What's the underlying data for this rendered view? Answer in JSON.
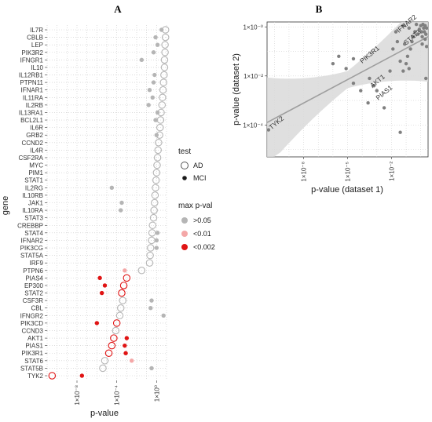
{
  "panels": {
    "A": {
      "letter": "A"
    },
    "B": {
      "letter": "B"
    }
  },
  "colors": {
    "grey": "#b5b5b5",
    "light_red": "#f4a7a7",
    "red": "#e01414",
    "band": "#d9d9d9",
    "line": "#9e9e9e",
    "scatter": "#808080"
  },
  "chart_data": [
    {
      "type": "scatter",
      "panel": "A",
      "xlabel": "p-value",
      "ylabel": "gene",
      "x_scale": "log10",
      "xlim_log10": [
        -11,
        1
      ],
      "x_ticks": [
        {
          "log10": -8,
          "label": "1×10⁻⁸"
        },
        {
          "log10": -4,
          "label": "1×10⁻⁴"
        },
        {
          "log10": 0,
          "label": "1×10⁰"
        }
      ],
      "grid": true,
      "genes": [
        "IL7R",
        "CBLB",
        "LEP",
        "PIK3R2",
        "IFNGR1",
        "IL10",
        "IL12RB1",
        "PTPN11",
        "IFNAR1",
        "IL11RA",
        "IL2RB",
        "IL13RA1",
        "BCL2L1",
        "IL6R",
        "GRB2",
        "CCND2",
        "IL4R",
        "CSF2RA",
        "MYC",
        "PIM1",
        "STAT1",
        "IL2RG",
        "IL10RB",
        "JAK1",
        "IL10RA",
        "STAT3",
        "CREBBP",
        "STAT4",
        "IFNAR2",
        "PIK3CG",
        "STAT5A",
        "IRF9",
        "PTPN6",
        "PIAS4",
        "EP300",
        "STAT2",
        "CSF3R",
        "CBL",
        "IFNGR2",
        "PIK3CD",
        "CCND3",
        "AKT1",
        "PIAS1",
        "PIK3R1",
        "STAT6",
        "STAT5B",
        "TYK2"
      ],
      "series": [
        {
          "name": "AD",
          "marker": "open-circle",
          "log10_p": [
            0.9,
            0.9,
            0.85,
            0.85,
            0.8,
            0.8,
            0.75,
            0.7,
            0.65,
            0.6,
            0.55,
            0.45,
            0.4,
            0.35,
            0.3,
            0.2,
            0.15,
            0.1,
            0.05,
            0.0,
            -0.05,
            -0.1,
            -0.15,
            -0.2,
            -0.25,
            -0.3,
            -0.4,
            -0.45,
            -0.5,
            -0.6,
            -0.65,
            -0.7,
            -1.5,
            -3.0,
            -3.3,
            -3.5,
            -3.4,
            -3.6,
            -3.7,
            -4.0,
            -4.1,
            -4.3,
            -4.5,
            -4.8,
            -5.2,
            -5.4,
            -10.5
          ],
          "max_pval_class": [
            ">0.05",
            ">0.05",
            ">0.05",
            ">0.05",
            ">0.05",
            ">0.05",
            ">0.05",
            ">0.05",
            ">0.05",
            ">0.05",
            ">0.05",
            ">0.05",
            ">0.05",
            ">0.05",
            ">0.05",
            ">0.05",
            ">0.05",
            ">0.05",
            ">0.05",
            ">0.05",
            ">0.05",
            ">0.05",
            ">0.05",
            ">0.05",
            ">0.05",
            ">0.05",
            ">0.05",
            ">0.05",
            ">0.05",
            ">0.05",
            ">0.05",
            ">0.05",
            ">0.05",
            "<0.002",
            "<0.002",
            "<0.002",
            ">0.05",
            ">0.05",
            ">0.05",
            "<0.002",
            ">0.05",
            "<0.002",
            "<0.002",
            "<0.002",
            ">0.05",
            ">0.05",
            "<0.002"
          ]
        },
        {
          "name": "MCI",
          "marker": "filled-circle",
          "log10_p": [
            0.5,
            -0.1,
            0.1,
            -0.3,
            -1.5,
            null,
            -0.2,
            -0.3,
            -0.7,
            -0.4,
            -0.8,
            0.1,
            -0.1,
            null,
            0.0,
            null,
            null,
            null,
            null,
            null,
            null,
            -4.5,
            null,
            -3.5,
            -3.6,
            null,
            null,
            0.1,
            0.0,
            0.0,
            null,
            null,
            -3.2,
            -5.7,
            -5.2,
            -5.5,
            -0.5,
            -0.6,
            0.7,
            -6.0,
            null,
            -3.0,
            -3.2,
            -3.1,
            -2.5,
            -0.5,
            -7.5
          ],
          "max_pval_class": [
            ">0.05",
            ">0.05",
            ">0.05",
            ">0.05",
            ">0.05",
            null,
            ">0.05",
            ">0.05",
            ">0.05",
            ">0.05",
            ">0.05",
            ">0.05",
            ">0.05",
            null,
            ">0.05",
            null,
            null,
            null,
            null,
            null,
            null,
            ">0.05",
            null,
            ">0.05",
            ">0.05",
            null,
            null,
            ">0.05",
            ">0.05",
            ">0.05",
            null,
            null,
            "<0.01",
            "<0.002",
            "<0.002",
            "<0.002",
            ">0.05",
            ">0.05",
            ">0.05",
            "<0.002",
            null,
            "<0.002",
            "<0.002",
            "<0.002",
            "<0.01",
            ">0.05",
            "<0.002"
          ]
        }
      ],
      "legend": {
        "placement": "right",
        "test": {
          "title": "test",
          "items": [
            "AD",
            "MCI"
          ]
        },
        "maxp": {
          "title": "max p-val",
          "items": [
            ">0.05",
            "<0.01",
            "<0.002"
          ]
        }
      }
    },
    {
      "type": "scatter",
      "panel": "B",
      "xlabel": "p-value (dataset 1)",
      "ylabel": "p-value (dataset 2)",
      "x_scale": "log10",
      "y_scale": "log10",
      "xlim_log10": [
        -10.5,
        0.5
      ],
      "ylim_log10": [
        -5.3,
        0.2
      ],
      "x_ticks": [
        {
          "log10": -8,
          "label": "1×10⁻⁸"
        },
        {
          "log10": -5,
          "label": "1×10⁻⁵"
        },
        {
          "log10": -2,
          "label": "1×10⁻²"
        }
      ],
      "y_ticks": [
        {
          "log10": 0,
          "label": "1×10⁻⁰"
        },
        {
          "log10": -2,
          "label": "1×10⁻²"
        },
        {
          "log10": -4,
          "label": "1×10⁻⁴"
        }
      ],
      "points": [
        {
          "x": -10.4,
          "y": -4.2
        },
        {
          "x": -6.0,
          "y": -1.5
        },
        {
          "x": -5.6,
          "y": -1.2
        },
        {
          "x": -5.1,
          "y": -1.7
        },
        {
          "x": -4.6,
          "y": -1.3
        },
        {
          "x": -4.6,
          "y": -2.3
        },
        {
          "x": -4.1,
          "y": -2.6
        },
        {
          "x": -3.6,
          "y": -3.1
        },
        {
          "x": -3.5,
          "y": -2.1
        },
        {
          "x": -3.2,
          "y": -2.4
        },
        {
          "x": -3.0,
          "y": -2.6
        },
        {
          "x": -2.5,
          "y": -3.3
        },
        {
          "x": -2.1,
          "y": -1.8
        },
        {
          "x": -1.9,
          "y": -0.9
        },
        {
          "x": -1.7,
          "y": -0.2
        },
        {
          "x": -1.6,
          "y": -0.6
        },
        {
          "x": -1.4,
          "y": -4.3
        },
        {
          "x": -1.4,
          "y": -1.4
        },
        {
          "x": -1.2,
          "y": -1.8
        },
        {
          "x": -1.1,
          "y": -0.7
        },
        {
          "x": -1.0,
          "y": -1.5
        },
        {
          "x": -0.9,
          "y": -1.2
        },
        {
          "x": -0.8,
          "y": -1.7
        },
        {
          "x": -0.7,
          "y": -0.9
        },
        {
          "x": -0.6,
          "y": -0.6
        },
        {
          "x": -0.5,
          "y": -0.4
        },
        {
          "x": -0.4,
          "y": -0.2
        },
        {
          "x": -0.3,
          "y": 0.1
        },
        {
          "x": -0.2,
          "y": -0.3
        },
        {
          "x": -0.1,
          "y": -0.1
        },
        {
          "x": 0.0,
          "y": 0.05
        },
        {
          "x": 0.05,
          "y": -0.2
        },
        {
          "x": 0.1,
          "y": -0.4
        },
        {
          "x": 0.1,
          "y": -0.7
        },
        {
          "x": 0.15,
          "y": 0.1
        },
        {
          "x": 0.2,
          "y": -0.05
        },
        {
          "x": 0.25,
          "y": -0.2
        },
        {
          "x": 0.3,
          "y": 0.05
        },
        {
          "x": 0.3,
          "y": -0.5
        },
        {
          "x": 0.35,
          "y": -0.3
        },
        {
          "x": 0.35,
          "y": -2.1
        },
        {
          "x": 0.4,
          "y": -0.05
        },
        {
          "x": 0.4,
          "y": -0.8
        },
        {
          "x": -0.8,
          "y": -0.05
        },
        {
          "x": -1.2,
          "y": 0.05
        }
      ],
      "annotations": [
        {
          "text": "IFNAR2",
          "x": -1.5,
          "y": -0.25
        },
        {
          "text": "STAT3",
          "x": -1.0,
          "y": -0.75
        },
        {
          "text": "PIK3R1",
          "x": -4.0,
          "y": -1.5
        },
        {
          "text": "AKT1",
          "x": -3.3,
          "y": -2.5
        },
        {
          "text": "PIAS1",
          "x": -2.9,
          "y": -3.0
        },
        {
          "text": "TYK2",
          "x": -10.2,
          "y": -4.2
        }
      ],
      "fit_line": {
        "x": [
          -10.5,
          0.5
        ],
        "y": [
          -3.9,
          -0.4
        ]
      },
      "grid": true
    }
  ]
}
